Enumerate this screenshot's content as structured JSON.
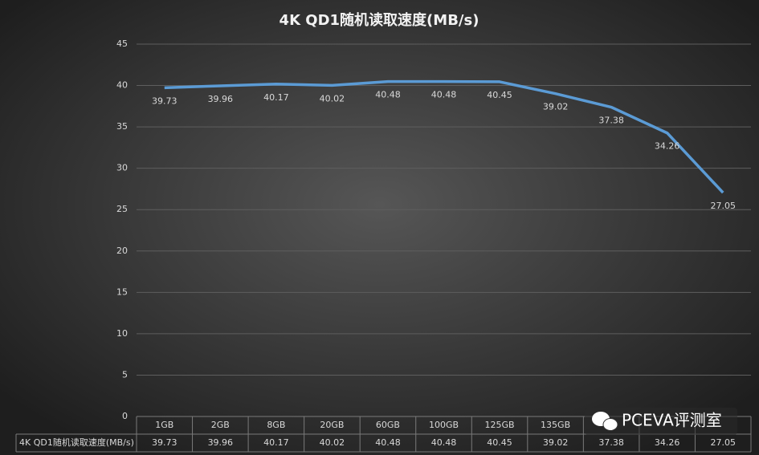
{
  "chart_data": {
    "type": "line",
    "title": "4K QD1随机读取速度(MB/s)",
    "categories": [
      "1GB",
      "2GB",
      "8GB",
      "20GB",
      "60GB",
      "100GB",
      "125GB",
      "135GB",
      null,
      null,
      null
    ],
    "series": [
      {
        "name": "4K QD1随机读取速度(MB/s)",
        "color": "#5b9bd5",
        "values": [
          39.73,
          39.96,
          40.17,
          40.02,
          40.48,
          40.48,
          40.45,
          39.02,
          37.38,
          34.26,
          27.05
        ]
      }
    ],
    "ylim": [
      0,
      45
    ],
    "yticks": [
      0,
      5,
      10,
      15,
      20,
      25,
      30,
      35,
      40,
      45
    ],
    "grid": true,
    "data_table": true
  },
  "watermark": "PCEVA评测室"
}
